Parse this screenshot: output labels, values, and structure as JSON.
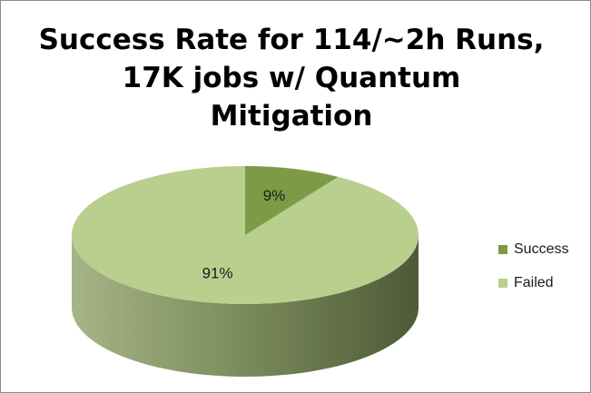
{
  "chart_data": {
    "type": "pie",
    "title": [
      "Success Rate for 114/~2h Runs,",
      "17K jobs w/ Quantum",
      "Mitigation"
    ],
    "categories": [
      "Success",
      "Failed"
    ],
    "values": [
      9,
      91
    ],
    "value_labels": [
      "9%",
      "91%"
    ],
    "colors": [
      "#7d9b47",
      "#b9cf8e"
    ],
    "legend_position": "right",
    "style": "3d"
  }
}
